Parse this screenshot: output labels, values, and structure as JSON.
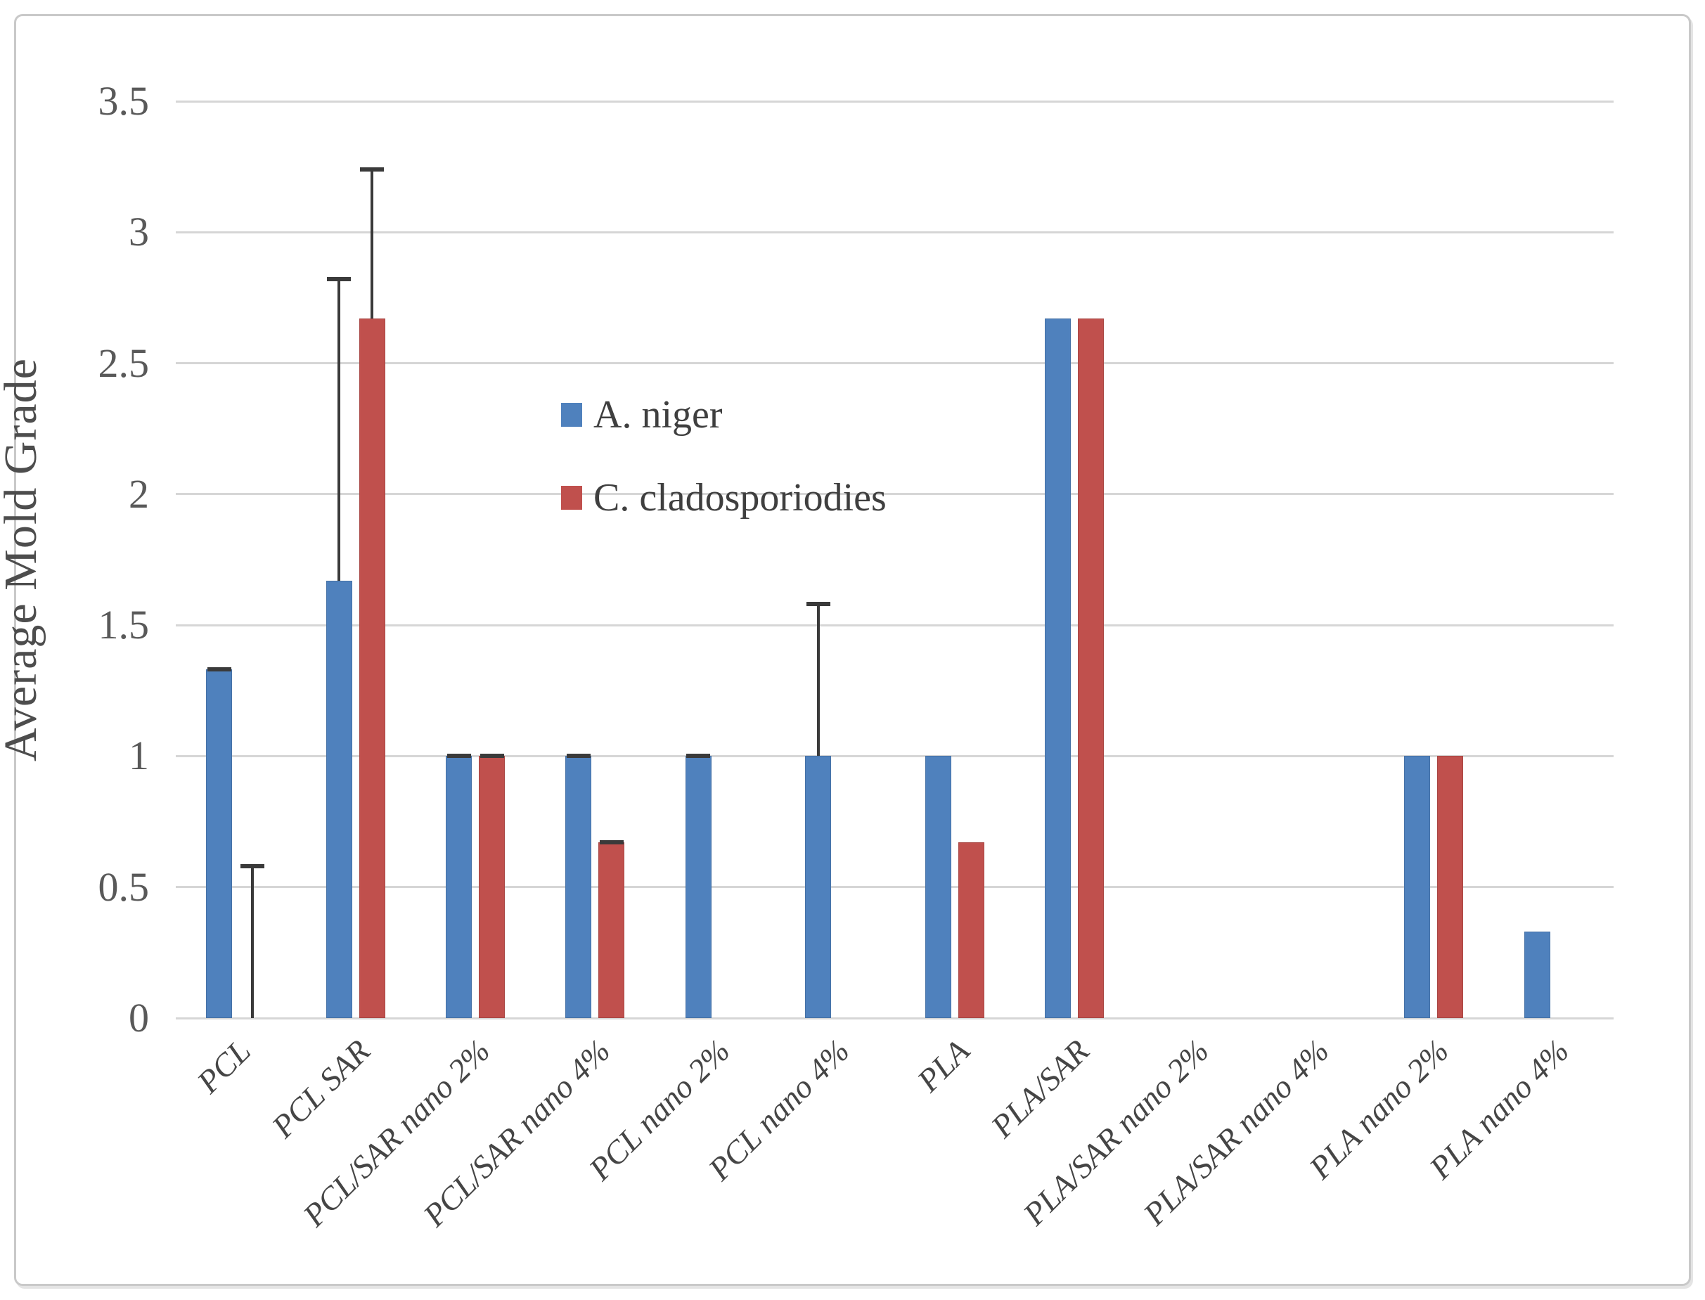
{
  "figure": {
    "background": "#ffffff",
    "frame_border_color": "#c9c9c9"
  },
  "chart_data": {
    "type": "bar",
    "title": "",
    "xlabel": "",
    "ylabel": "Average Mold Grade",
    "ylim": [
      0,
      3.5
    ],
    "ytick_step": 0.5,
    "ytick_labels": [
      "0",
      "0.5",
      "1",
      "1.5",
      "2",
      "2.5",
      "3",
      "3.5"
    ],
    "grid": true,
    "gridline_color": "#d6d6d6",
    "error_bar_color": "#3a3a3a",
    "legend_position": "inside-center-left",
    "categories": [
      "PCL",
      "PCL SAR",
      "PCL/SAR nano 2%",
      "PCL/SAR nano 4%",
      "PCL nano 2%",
      "PCL nano 4%",
      "PLA",
      "PLA/SAR",
      "PLA/SAR nano 2%",
      "PLA/SAR nano 4%",
      "PLA nano 2%",
      "PLA nano 4%"
    ],
    "series": [
      {
        "name": "A. niger",
        "color": "#4F81BD",
        "values": [
          1.33,
          1.67,
          1,
          1,
          1,
          1,
          1,
          2.67,
          0,
          0,
          1,
          0.33
        ],
        "error_top": [
          1.33,
          2.82,
          1,
          1,
          1,
          1.58,
          null,
          null,
          null,
          null,
          null,
          null
        ]
      },
      {
        "name": "C. cladosporiodies",
        "color": "#C0504D",
        "values": [
          0,
          2.67,
          1,
          0.67,
          0,
          0,
          0.67,
          2.67,
          0,
          0,
          1,
          0
        ],
        "error_top": [
          0.58,
          3.24,
          1,
          0.67,
          null,
          null,
          null,
          null,
          null,
          null,
          null,
          null
        ]
      }
    ]
  }
}
